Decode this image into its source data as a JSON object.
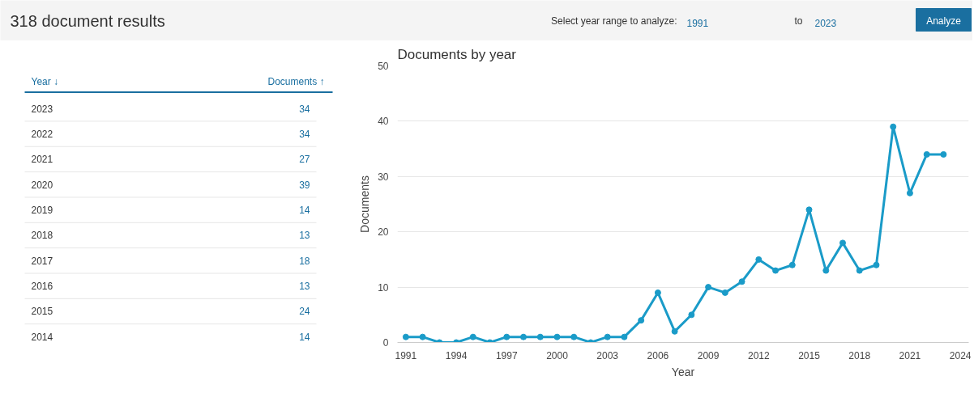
{
  "chart_data": {
    "type": "line",
    "title": "Documents by year",
    "xlabel": "Year",
    "ylabel": "Documents",
    "x": [
      1991,
      1992,
      1993,
      1994,
      1995,
      1996,
      1997,
      1998,
      1999,
      2000,
      2001,
      2002,
      2003,
      2004,
      2005,
      2006,
      2007,
      2008,
      2009,
      2010,
      2011,
      2012,
      2013,
      2014,
      2015,
      2016,
      2017,
      2018,
      2019,
      2020,
      2021,
      2022,
      2023
    ],
    "series": [
      {
        "color": "#1a9bc8",
        "values": [
          1,
          1,
          0,
          0,
          1,
          0,
          1,
          1,
          1,
          1,
          1,
          0,
          1,
          1,
          4,
          9,
          2,
          5,
          10,
          9,
          11,
          15,
          13,
          14,
          24,
          13,
          18,
          13,
          14,
          39,
          27,
          34,
          34
        ]
      }
    ],
    "xlim": [
      1990.5,
      2024.5
    ],
    "xticks": [
      1991,
      1994,
      1997,
      2000,
      2003,
      2006,
      2009,
      2012,
      2015,
      2018,
      2021,
      2024
    ],
    "ylim": [
      0,
      50
    ],
    "yticks": [
      0,
      10,
      20,
      30,
      40,
      50
    ],
    "grid": "y",
    "marker": "circle",
    "line_style": "solid",
    "annotations": [
      "318 document results",
      "Select year range to analyze:",
      "1991",
      "to",
      "2023",
      "Analyze",
      "Year ↓",
      "Documents ↑",
      "2023",
      "34",
      "2022",
      "34",
      "2021",
      "27",
      "2020",
      "39",
      "2019",
      "14",
      "2018",
      "13",
      "2017",
      "18",
      "2016",
      "13",
      "2015",
      "24",
      "2014",
      "14"
    ]
  }
}
